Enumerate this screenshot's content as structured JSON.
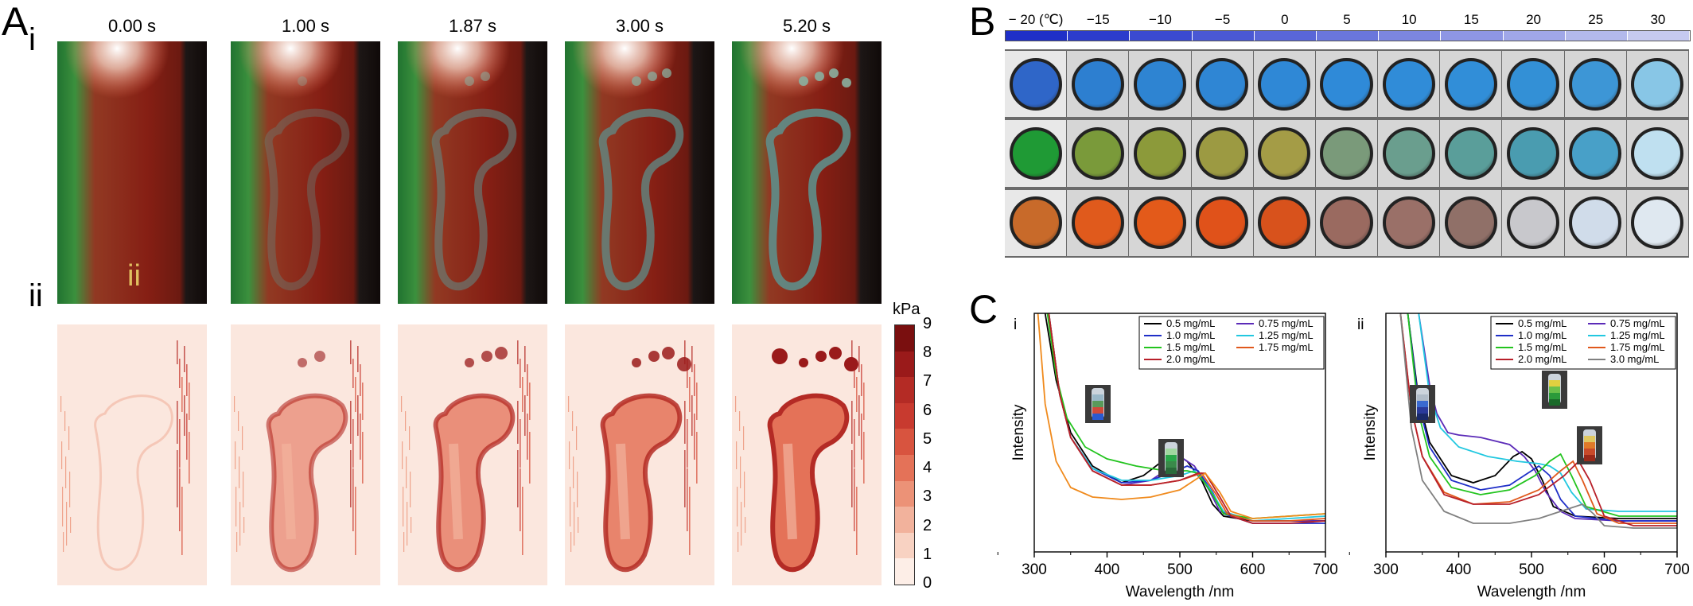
{
  "panel_a": {
    "letter": "A",
    "row_i_label": "i",
    "row_ii_label": "ii",
    "inset_label": "ii",
    "time_labels": [
      "0.00 s",
      "1.00 s",
      "1.87 s",
      "3.00 s",
      "5.20 s"
    ],
    "colorbar": {
      "unit": "kPa",
      "ticks": [
        "9",
        "8",
        "7",
        "6",
        "5",
        "4",
        "3",
        "2",
        "1",
        "0"
      ],
      "colors": [
        "#7a0f0f",
        "#9a1a1a",
        "#b42b25",
        "#c83a2f",
        "#d8543f",
        "#e47258",
        "#ec9277",
        "#f2b29c",
        "#f8d2c2",
        "#fdeee7"
      ]
    }
  },
  "panel_b": {
    "letter": "B",
    "temperatures": [
      "− 20 (℃)",
      "−15",
      "−10",
      "−5",
      "0",
      "5",
      "10",
      "15",
      "20",
      "25",
      "30"
    ],
    "bar_colors": [
      "#1f2fc8",
      "#2c3ccc",
      "#3b4ad0",
      "#4a58d4",
      "#5966d8",
      "#6a76dc",
      "#7c86e0",
      "#8e96e4",
      "#a0a7e8",
      "#b3b9ec",
      "#c6caf0"
    ],
    "row_colors": [
      [
        "#2f66c8",
        "#2d7fd0",
        "#2e84d2",
        "#2f86d4",
        "#2f88d6",
        "#2f8ad8",
        "#308cd8",
        "#318ed8",
        "#3390d6",
        "#3d96d6",
        "#88c6e6"
      ],
      [
        "#1f9a35",
        "#7a9a3a",
        "#8c9a3a",
        "#9c9a42",
        "#a49c46",
        "#7a9a7a",
        "#6a9e8e",
        "#5a9e9a",
        "#4a9cb0",
        "#48a0c8",
        "#bfe0f0"
      ],
      [
        "#c86a2a",
        "#e05a1c",
        "#e35a1a",
        "#e0521a",
        "#d8521c",
        "#9a6a60",
        "#9a7068",
        "#907068",
        "#c8c8cc",
        "#d0dcea",
        "#dfe8f0"
      ]
    ]
  },
  "panel_c": {
    "letter": "C",
    "chart_data": [
      {
        "type": "line",
        "label": "i",
        "xlabel": "Wavelength /nm",
        "ylabel": "Intensity",
        "xlim": [
          300,
          700
        ],
        "xticks": [
          300,
          400,
          500,
          600,
          700
        ],
        "legend": "top-right",
        "series": [
          {
            "name": "0.5 mg/mL",
            "color": "#000000",
            "x": [
              315,
              330,
              350,
              380,
              420,
              450,
              480,
              495,
              510,
              530,
              545,
              560,
              600,
              650,
              700
            ],
            "y": [
              1.0,
              0.72,
              0.5,
              0.36,
              0.29,
              0.32,
              0.39,
              0.41,
              0.38,
              0.3,
              0.2,
              0.15,
              0.13,
              0.13,
              0.13
            ]
          },
          {
            "name": "0.75 mg/mL",
            "color": "#5b2bb8",
            "x": [
              320,
              335,
              350,
              380,
              420,
              460,
              490,
              505,
              520,
              540,
              555,
              600,
              650,
              700
            ],
            "y": [
              1.0,
              0.66,
              0.48,
              0.34,
              0.28,
              0.3,
              0.36,
              0.39,
              0.36,
              0.26,
              0.17,
              0.13,
              0.13,
              0.13
            ]
          },
          {
            "name": "1.0 mg/mL",
            "color": "#1f2fc8",
            "x": [
              320,
              335,
              350,
              380,
              420,
              460,
              495,
              510,
              525,
              545,
              560,
              600,
              650,
              700
            ],
            "y": [
              1.0,
              0.66,
              0.48,
              0.35,
              0.29,
              0.3,
              0.34,
              0.36,
              0.34,
              0.25,
              0.16,
              0.12,
              0.12,
              0.12
            ]
          },
          {
            "name": "1.25 mg/mL",
            "color": "#22c8e0",
            "x": [
              320,
              335,
              350,
              380,
              420,
              460,
              500,
              520,
              540,
              560,
              600,
              650,
              700
            ],
            "y": [
              1.0,
              0.66,
              0.48,
              0.35,
              0.3,
              0.3,
              0.32,
              0.34,
              0.27,
              0.17,
              0.13,
              0.14,
              0.15
            ]
          },
          {
            "name": "1.5 mg/mL",
            "color": "#22c41e",
            "x": [
              318,
              330,
              345,
              370,
              400,
              440,
              480,
              510,
              525,
              545,
              560,
              600,
              650,
              700
            ],
            "y": [
              1.0,
              0.74,
              0.56,
              0.44,
              0.39,
              0.36,
              0.34,
              0.34,
              0.33,
              0.24,
              0.16,
              0.14,
              0.15,
              0.16
            ]
          },
          {
            "name": "1.75 mg/mL",
            "color": "#e0581c",
            "x": [
              320,
              335,
              350,
              380,
              420,
              460,
              500,
              520,
              530,
              550,
              565,
              600,
              650,
              700
            ],
            "y": [
              1.0,
              0.66,
              0.48,
              0.34,
              0.28,
              0.28,
              0.3,
              0.32,
              0.33,
              0.24,
              0.16,
              0.13,
              0.13,
              0.14
            ]
          },
          {
            "name": "2.0 mg/mL",
            "color": "#b8202a",
            "x": [
              320,
              335,
              350,
              380,
              420,
              460,
              500,
              525,
              535,
              555,
              570,
              600,
              650,
              700
            ],
            "y": [
              1.0,
              0.66,
              0.48,
              0.34,
              0.28,
              0.28,
              0.3,
              0.33,
              0.33,
              0.23,
              0.15,
              0.12,
              0.12,
              0.13
            ]
          },
          {
            "name": "orange (no label)",
            "color": "#f08a1c",
            "hide_in_legend": true,
            "x": [
              305,
              315,
              330,
              350,
              380,
              420,
              460,
              500,
              520,
              535,
              555,
              570,
              600,
              650,
              700
            ],
            "y": [
              1.0,
              0.62,
              0.38,
              0.27,
              0.23,
              0.22,
              0.23,
              0.26,
              0.3,
              0.33,
              0.25,
              0.17,
              0.14,
              0.15,
              0.16
            ]
          }
        ]
      },
      {
        "type": "line",
        "label": "ii",
        "xlabel": "Wavelength /nm",
        "ylabel": "Intensity",
        "xlim": [
          300,
          700
        ],
        "xticks": [
          300,
          400,
          500,
          600,
          700
        ],
        "legend": "top-right",
        "series": [
          {
            "name": "0.5 mg/mL",
            "color": "#000000",
            "x": [
              330,
              345,
              360,
              390,
              420,
              450,
              475,
              487,
              500,
              515,
              530,
              560,
              620,
              700
            ],
            "y": [
              1.0,
              0.64,
              0.46,
              0.32,
              0.29,
              0.32,
              0.4,
              0.42,
              0.39,
              0.3,
              0.19,
              0.15,
              0.14,
              0.14
            ]
          },
          {
            "name": "0.75 mg/mL",
            "color": "#5b2bb8",
            "x": [
              345,
              360,
              370,
              385,
              400,
              430,
              470,
              490,
              505,
              520,
              540,
              560,
              620,
              700
            ],
            "y": [
              1.0,
              0.7,
              0.58,
              0.5,
              0.49,
              0.48,
              0.45,
              0.4,
              0.34,
              0.25,
              0.17,
              0.14,
              0.13,
              0.13
            ]
          },
          {
            "name": "1.0 mg/mL",
            "color": "#1f2fc8",
            "x": [
              330,
              345,
              360,
              390,
              430,
              470,
              495,
              510,
              525,
              540,
              560,
              620,
              700
            ],
            "y": [
              1.0,
              0.62,
              0.44,
              0.3,
              0.26,
              0.28,
              0.33,
              0.36,
              0.32,
              0.22,
              0.15,
              0.13,
              0.13
            ]
          },
          {
            "name": "1.25 mg/mL",
            "color": "#22c8e0",
            "x": [
              345,
              360,
              375,
              400,
              440,
              480,
              510,
              525,
              540,
              555,
              575,
              620,
              700
            ],
            "y": [
              1.0,
              0.66,
              0.52,
              0.44,
              0.4,
              0.38,
              0.37,
              0.36,
              0.33,
              0.25,
              0.18,
              0.17,
              0.17
            ]
          },
          {
            "name": "1.5 mg/mL",
            "color": "#22c41e",
            "x": [
              330,
              345,
              360,
              390,
              430,
              470,
              505,
              525,
              540,
              555,
              575,
              620,
              700
            ],
            "y": [
              1.0,
              0.58,
              0.4,
              0.27,
              0.24,
              0.26,
              0.32,
              0.38,
              0.41,
              0.32,
              0.19,
              0.15,
              0.15
            ]
          },
          {
            "name": "1.75 mg/mL",
            "color": "#e0581c",
            "x": [
              320,
              335,
              350,
              380,
              420,
              470,
              510,
              540,
              557,
              570,
              590,
              620,
              700
            ],
            "y": [
              1.0,
              0.6,
              0.4,
              0.25,
              0.2,
              0.21,
              0.26,
              0.34,
              0.38,
              0.3,
              0.16,
              0.12,
              0.12
            ]
          },
          {
            "name": "2.0 mg/mL",
            "color": "#b8202a",
            "x": [
              320,
              335,
              350,
              380,
              420,
              470,
              510,
              545,
              565,
              580,
              600,
              640,
              700
            ],
            "y": [
              1.0,
              0.6,
              0.4,
              0.24,
              0.2,
              0.2,
              0.24,
              0.32,
              0.38,
              0.3,
              0.15,
              0.11,
              0.11
            ]
          },
          {
            "name": "3.0 mg/mL",
            "color": "#808080",
            "x": [
              320,
              335,
              350,
              380,
              420,
              470,
              510,
              550,
              570,
              585,
              600,
              640,
              700
            ],
            "y": [
              1.0,
              0.52,
              0.3,
              0.17,
              0.12,
              0.12,
              0.14,
              0.18,
              0.2,
              0.16,
              0.11,
              0.1,
              0.1
            ]
          }
        ]
      }
    ]
  }
}
